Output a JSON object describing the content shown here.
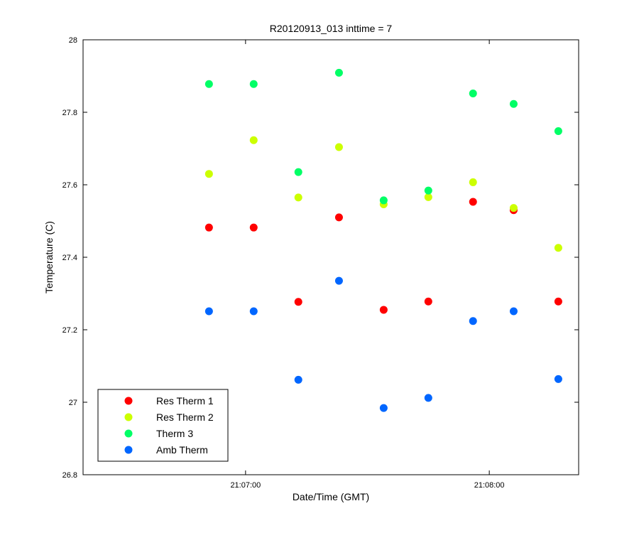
{
  "chart_data": {
    "type": "scatter",
    "title": "R20120913_013 inttime = 7",
    "xlabel": "Date/Time (GMT)",
    "ylabel": "Temperature (C)",
    "x_ticks": [
      "21:07:00",
      "21:08:00"
    ],
    "x_tick_values": [
      "21:07:00",
      "21:08:00"
    ],
    "xlim": [
      "21:06:20",
      "21:08:22"
    ],
    "ylim": [
      26.8,
      28.0
    ],
    "y_ticks": [
      "26.8",
      "27",
      "27.2",
      "27.4",
      "27.6",
      "27.8",
      "28"
    ],
    "y_tick_values": [
      26.8,
      27.0,
      27.2,
      27.4,
      27.6,
      27.8,
      28.0
    ],
    "grid": false,
    "legend_position": "bottom-left",
    "x": [
      "21:06:51",
      "21:07:02",
      "21:07:13",
      "21:07:23",
      "21:07:34",
      "21:07:45",
      "21:07:56",
      "21:08:06",
      "21:08:17"
    ],
    "series": [
      {
        "name": "Res Therm 1",
        "color": "#ff0000",
        "values": [
          27.482,
          27.482,
          27.277,
          27.51,
          27.255,
          27.278,
          27.553,
          27.53,
          27.278
        ]
      },
      {
        "name": "Res Therm 2",
        "color": "#ccff00",
        "values": [
          27.63,
          27.723,
          27.565,
          27.704,
          27.546,
          27.566,
          27.607,
          27.536,
          27.426
        ]
      },
      {
        "name": "Therm 3",
        "color": "#00ff66",
        "values": [
          27.878,
          27.878,
          27.635,
          27.909,
          27.557,
          27.584,
          27.852,
          27.823,
          27.748
        ]
      },
      {
        "name": "Amb Therm",
        "color": "#0066ff",
        "values": [
          27.251,
          27.251,
          27.062,
          27.335,
          26.984,
          27.012,
          27.224,
          27.251,
          27.064
        ]
      }
    ]
  }
}
